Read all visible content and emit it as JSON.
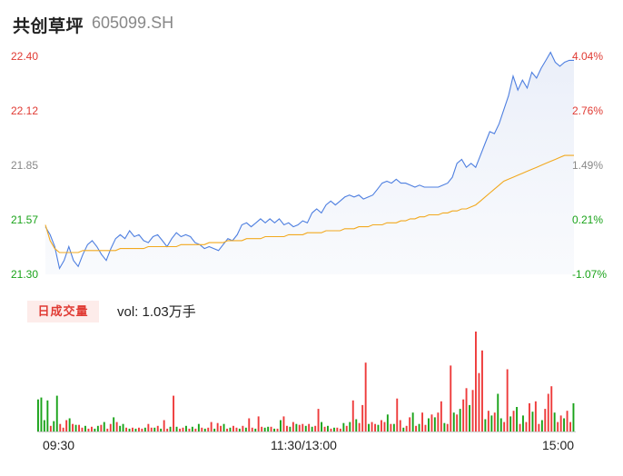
{
  "header": {
    "name": "共创草坪",
    "code": "605099.SH"
  },
  "chart_data": [
    {
      "type": "line",
      "series": [
        {
          "role": "price",
          "color": "#4e7fe0",
          "values": [
            21.54,
            21.5,
            21.44,
            21.33,
            21.37,
            21.44,
            21.37,
            21.34,
            21.4,
            21.45,
            21.47,
            21.44,
            21.4,
            21.37,
            21.43,
            21.48,
            21.5,
            21.48,
            21.52,
            21.49,
            21.5,
            21.47,
            21.46,
            21.49,
            21.5,
            21.47,
            21.44,
            21.48,
            21.51,
            21.49,
            21.5,
            21.49,
            21.46,
            21.45,
            21.43,
            21.44,
            21.43,
            21.42,
            21.45,
            21.48,
            21.47,
            21.5,
            21.55,
            21.56,
            21.54,
            21.56,
            21.58,
            21.56,
            21.58,
            21.56,
            21.58,
            21.55,
            21.56,
            21.54,
            21.55,
            21.57,
            21.56,
            21.61,
            21.63,
            21.61,
            21.65,
            21.67,
            21.65,
            21.67,
            21.69,
            21.7,
            21.69,
            21.7,
            21.68,
            21.69,
            21.7,
            21.73,
            21.76,
            21.77,
            21.76,
            21.78,
            21.76,
            21.76,
            21.75,
            21.74,
            21.75,
            21.74,
            21.74,
            21.74,
            21.74,
            21.75,
            21.76,
            21.79,
            21.86,
            21.88,
            21.84,
            21.86,
            21.84,
            21.9,
            21.96,
            22.02,
            22.01,
            22.06,
            22.13,
            22.2,
            22.3,
            22.23,
            22.28,
            22.24,
            22.32,
            22.29,
            22.34,
            22.38,
            22.42,
            22.37,
            22.35,
            22.37,
            22.38,
            22.38
          ]
        },
        {
          "role": "avg",
          "color": "#f2a91f",
          "values": [
            21.55,
            21.47,
            21.43,
            21.41,
            21.41,
            21.41,
            21.41,
            21.41,
            21.42,
            21.42,
            21.42,
            21.42,
            21.42,
            21.42,
            21.42,
            21.42,
            21.43,
            21.43,
            21.43,
            21.43,
            21.43,
            21.43,
            21.44,
            21.44,
            21.44,
            21.44,
            21.44,
            21.44,
            21.44,
            21.45,
            21.45,
            21.45,
            21.45,
            21.45,
            21.45,
            21.46,
            21.46,
            21.46,
            21.46,
            21.47,
            21.47,
            21.47,
            21.47,
            21.48,
            21.48,
            21.48,
            21.48,
            21.49,
            21.49,
            21.49,
            21.49,
            21.49,
            21.5,
            21.5,
            21.5,
            21.5,
            21.51,
            21.51,
            21.51,
            21.51,
            21.52,
            21.52,
            21.52,
            21.52,
            21.53,
            21.53,
            21.53,
            21.54,
            21.54,
            21.54,
            21.55,
            21.55,
            21.55,
            21.56,
            21.56,
            21.56,
            21.57,
            21.57,
            21.58,
            21.58,
            21.59,
            21.59,
            21.6,
            21.6,
            21.6,
            21.61,
            21.61,
            21.62,
            21.62,
            21.63,
            21.63,
            21.64,
            21.65,
            21.67,
            21.69,
            21.71,
            21.73,
            21.75,
            21.77,
            21.78,
            21.79,
            21.8,
            21.81,
            21.82,
            21.83,
            21.84,
            21.85,
            21.86,
            21.87,
            21.88,
            21.89,
            21.9,
            21.9,
            21.9
          ]
        }
      ],
      "ylim": [
        21.3,
        22.4
      ],
      "y_ticks_left": [
        "22.40",
        "22.12",
        "21.85",
        "21.57",
        "21.30"
      ],
      "y_ticks_right": [
        "4.04%",
        "2.76%",
        "1.49%",
        "0.21%",
        "-1.07%"
      ]
    },
    {
      "type": "bar",
      "title": "日成交量",
      "subtitle": "vol: 1.03万手",
      "x_ticks": [
        "09:30",
        "11:30/13:00",
        "15:00"
      ],
      "colors": {
        "up": "#ee3b3b",
        "down": "#1aa31a"
      },
      "values": [
        34,
        36,
        12,
        33,
        6,
        11,
        38,
        8,
        4,
        12,
        14,
        8,
        7,
        7,
        4,
        6,
        3,
        5,
        3,
        6,
        7,
        10,
        3,
        8,
        15,
        10,
        6,
        8,
        4,
        3,
        4,
        3,
        4,
        3,
        4,
        8,
        4,
        4,
        6,
        3,
        12,
        3,
        5,
        38,
        5,
        3,
        4,
        6,
        3,
        5,
        3,
        8,
        4,
        3,
        4,
        10,
        3,
        9,
        6,
        8,
        3,
        4,
        6,
        4,
        3,
        6,
        4,
        14,
        4,
        3,
        16,
        5,
        4,
        5,
        5,
        3,
        3,
        12,
        16,
        6,
        5,
        10,
        8,
        7,
        8,
        6,
        8,
        5,
        6,
        24,
        10,
        5,
        6,
        3,
        4,
        4,
        3,
        9,
        6,
        10,
        33,
        13,
        9,
        28,
        73,
        8,
        10,
        8,
        7,
        12,
        10,
        18,
        8,
        8,
        35,
        12,
        4,
        6,
        15,
        20,
        6,
        8,
        20,
        7,
        14,
        18,
        15,
        20,
        32,
        9,
        8,
        70,
        20,
        18,
        24,
        34,
        46,
        28,
        44,
        106,
        62,
        86,
        13,
        22,
        17,
        20,
        40,
        14,
        10,
        66,
        16,
        22,
        26,
        8,
        17,
        10,
        30,
        21,
        32,
        8,
        12,
        24,
        40,
        48,
        20,
        10,
        17,
        14,
        22,
        10,
        30
      ],
      "up": [
        0,
        0,
        0,
        0,
        1,
        0,
        0,
        1,
        1,
        1,
        0,
        1,
        0,
        1,
        1,
        0,
        1,
        1,
        0,
        0,
        1,
        0,
        1,
        1,
        0,
        1,
        0,
        0,
        1,
        0,
        1,
        0,
        1,
        1,
        0,
        1,
        1,
        0,
        1,
        0,
        1,
        1,
        0,
        1,
        0,
        1,
        1,
        0,
        1,
        0,
        1,
        0,
        1,
        0,
        1,
        1,
        0,
        1,
        1,
        0,
        1,
        0,
        1,
        1,
        0,
        1,
        0,
        1,
        1,
        0,
        1,
        1,
        0,
        0,
        1,
        0,
        1,
        0,
        1,
        1,
        0,
        1,
        0,
        1,
        1,
        0,
        1,
        0,
        1,
        1,
        0,
        1,
        0,
        1,
        0,
        1,
        1,
        0,
        1,
        0,
        1,
        0,
        1,
        1,
        1,
        0,
        1,
        1,
        0,
        1,
        1,
        0,
        1,
        0,
        1,
        1,
        0,
        1,
        1,
        0,
        1,
        0,
        1,
        1,
        0,
        1,
        0,
        1,
        1,
        0,
        1,
        1,
        0,
        1,
        0,
        1,
        1,
        0,
        1,
        1,
        1,
        1,
        0,
        1,
        0,
        1,
        0,
        0,
        1,
        1,
        0,
        1,
        0,
        1,
        0,
        1,
        1,
        0,
        1,
        1,
        0,
        1,
        1,
        1,
        0,
        1,
        1,
        0,
        1,
        1,
        0
      ]
    }
  ]
}
